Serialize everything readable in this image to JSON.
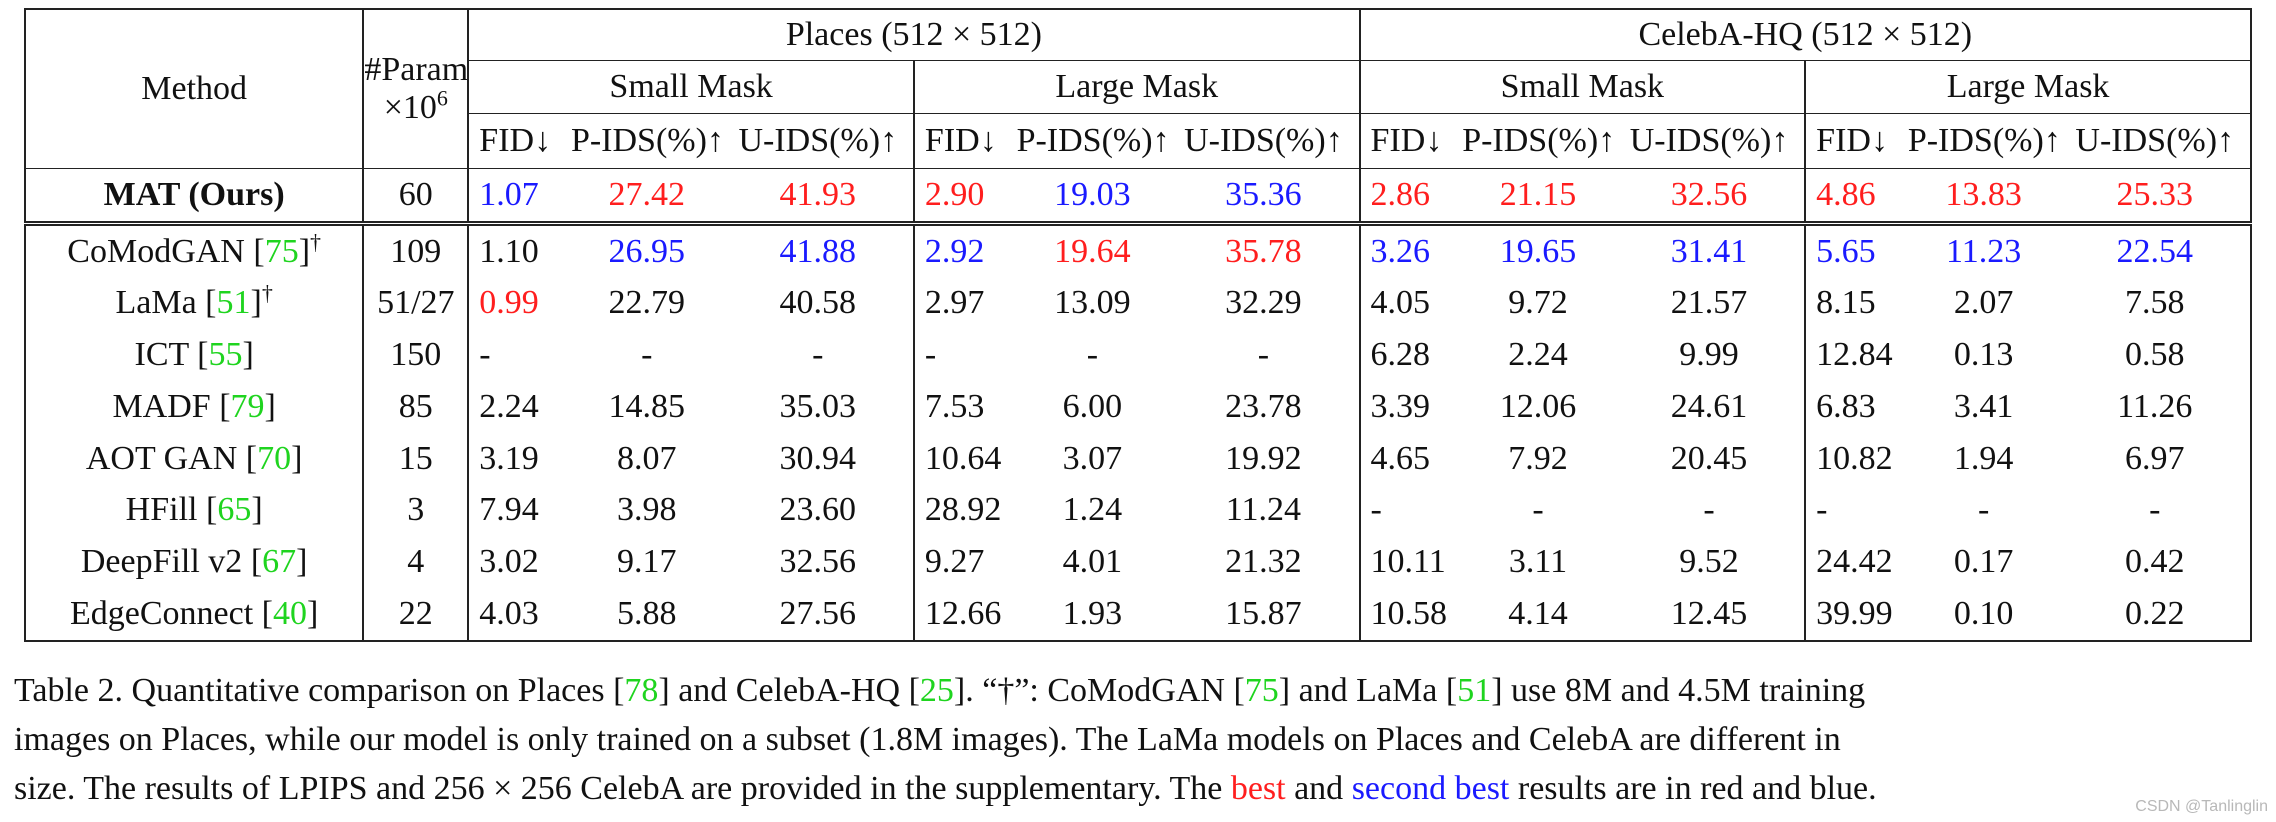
{
  "table": {
    "col_method": "Method",
    "col_param_top": "#Param.",
    "col_param_bottom": "×10",
    "col_param_exp": "6",
    "datasets": [
      "Places (512 × 512)",
      "CelebA-HQ (512 × 512)"
    ],
    "masks": [
      "Small Mask",
      "Large Mask",
      "Small Mask",
      "Large Mask"
    ],
    "metrics": [
      "FID↓",
      "P-IDS(%)↑",
      "U-IDS(%)↑"
    ],
    "rows": [
      {
        "name": "MAT (Ours)",
        "ref": "",
        "dagger": "",
        "params": "60",
        "bold": true,
        "values": [
          "1.07",
          "27.42",
          "41.93",
          "2.90",
          "19.03",
          "35.36",
          "2.86",
          "21.15",
          "32.56",
          "4.86",
          "13.83",
          "25.33"
        ],
        "colors": [
          "blue",
          "red",
          "red",
          "red",
          "blue",
          "blue",
          "red",
          "red",
          "red",
          "red",
          "red",
          "red"
        ]
      },
      {
        "name": "CoModGAN ",
        "ref": "75",
        "dagger": "†",
        "params": "109",
        "values": [
          "1.10",
          "26.95",
          "41.88",
          "2.92",
          "19.64",
          "35.78",
          "3.26",
          "19.65",
          "31.41",
          "5.65",
          "11.23",
          "22.54"
        ],
        "colors": [
          "",
          "blue",
          "blue",
          "blue",
          "red",
          "red",
          "blue",
          "blue",
          "blue",
          "blue",
          "blue",
          "blue"
        ]
      },
      {
        "name": "LaMa ",
        "ref": "51",
        "dagger": "†",
        "params": "51/27",
        "values": [
          "0.99",
          "22.79",
          "40.58",
          "2.97",
          "13.09",
          "32.29",
          "4.05",
          "9.72",
          "21.57",
          "8.15",
          "2.07",
          "7.58"
        ],
        "colors": [
          "red",
          "",
          "",
          "",
          "",
          "",
          "",
          "",
          "",
          "",
          "",
          ""
        ]
      },
      {
        "name": "ICT ",
        "ref": "55",
        "dagger": "",
        "params": "150",
        "values": [
          "-",
          "-",
          "-",
          "-",
          "-",
          "-",
          "6.28",
          "2.24",
          "9.99",
          "12.84",
          "0.13",
          "0.58"
        ],
        "colors": [
          "",
          "",
          "",
          "",
          "",
          "",
          "",
          "",
          "",
          "",
          "",
          ""
        ]
      },
      {
        "name": "MADF ",
        "ref": "79",
        "dagger": "",
        "params": "85",
        "values": [
          "2.24",
          "14.85",
          "35.03",
          "7.53",
          "6.00",
          "23.78",
          "3.39",
          "12.06",
          "24.61",
          "6.83",
          "3.41",
          "11.26"
        ],
        "colors": [
          "",
          "",
          "",
          "",
          "",
          "",
          "",
          "",
          "",
          "",
          "",
          ""
        ]
      },
      {
        "name": "AOT GAN ",
        "ref": "70",
        "dagger": "",
        "params": "15",
        "values": [
          "3.19",
          "8.07",
          "30.94",
          "10.64",
          "3.07",
          "19.92",
          "4.65",
          "7.92",
          "20.45",
          "10.82",
          "1.94",
          "6.97"
        ],
        "colors": [
          "",
          "",
          "",
          "",
          "",
          "",
          "",
          "",
          "",
          "",
          "",
          ""
        ]
      },
      {
        "name": "HFill ",
        "ref": "65",
        "dagger": "",
        "params": "3",
        "values": [
          "7.94",
          "3.98",
          "23.60",
          "28.92",
          "1.24",
          "11.24",
          "-",
          "-",
          "-",
          "-",
          "-",
          "-"
        ],
        "colors": [
          "",
          "",
          "",
          "",
          "",
          "",
          "",
          "",
          "",
          "",
          "",
          ""
        ]
      },
      {
        "name": "DeepFill v2 ",
        "ref": "67",
        "dagger": "",
        "params": "4",
        "values": [
          "3.02",
          "9.17",
          "32.56",
          "9.27",
          "4.01",
          "21.32",
          "10.11",
          "3.11",
          "9.52",
          "24.42",
          "0.17",
          "0.42"
        ],
        "colors": [
          "",
          "",
          "",
          "",
          "",
          "",
          "",
          "",
          "",
          "",
          "",
          ""
        ]
      },
      {
        "name": "EdgeConnect ",
        "ref": "40",
        "dagger": "",
        "params": "22",
        "values": [
          "4.03",
          "5.88",
          "27.56",
          "12.66",
          "1.93",
          "15.87",
          "10.58",
          "4.14",
          "12.45",
          "39.99",
          "0.10",
          "0.22"
        ],
        "colors": [
          "",
          "",
          "",
          "",
          "",
          "",
          "",
          "",
          "",
          "",
          "",
          ""
        ]
      }
    ]
  },
  "caption": {
    "line1_a": "Table 2. Quantitative comparison on Places [",
    "ref78": "78",
    "line1_b": "] and CelebA-HQ [",
    "ref25": "25",
    "line1_c": "]. “†”: CoModGAN [",
    "ref75": "75",
    "line1_d": "] and LaMa [",
    "ref51": "51",
    "line1_e": "] use 8M and 4.5M training",
    "line2": "images on Places, while our model is only trained on a subset (1.8M images). The LaMa models on Places and CelebA are different in",
    "line3_a": "size. The results of LPIPS and 256 × 256 CelebA are provided in the supplementary. The ",
    "best": "best",
    "line3_b": " and ",
    "second_best": "second best",
    "line3_c": " results are in red and blue."
  },
  "watermark": "CSDN @Tanlinglin",
  "colors": {
    "red": "#ff1e1e",
    "blue": "#1a1aff",
    "green": "#1fd41f"
  }
}
